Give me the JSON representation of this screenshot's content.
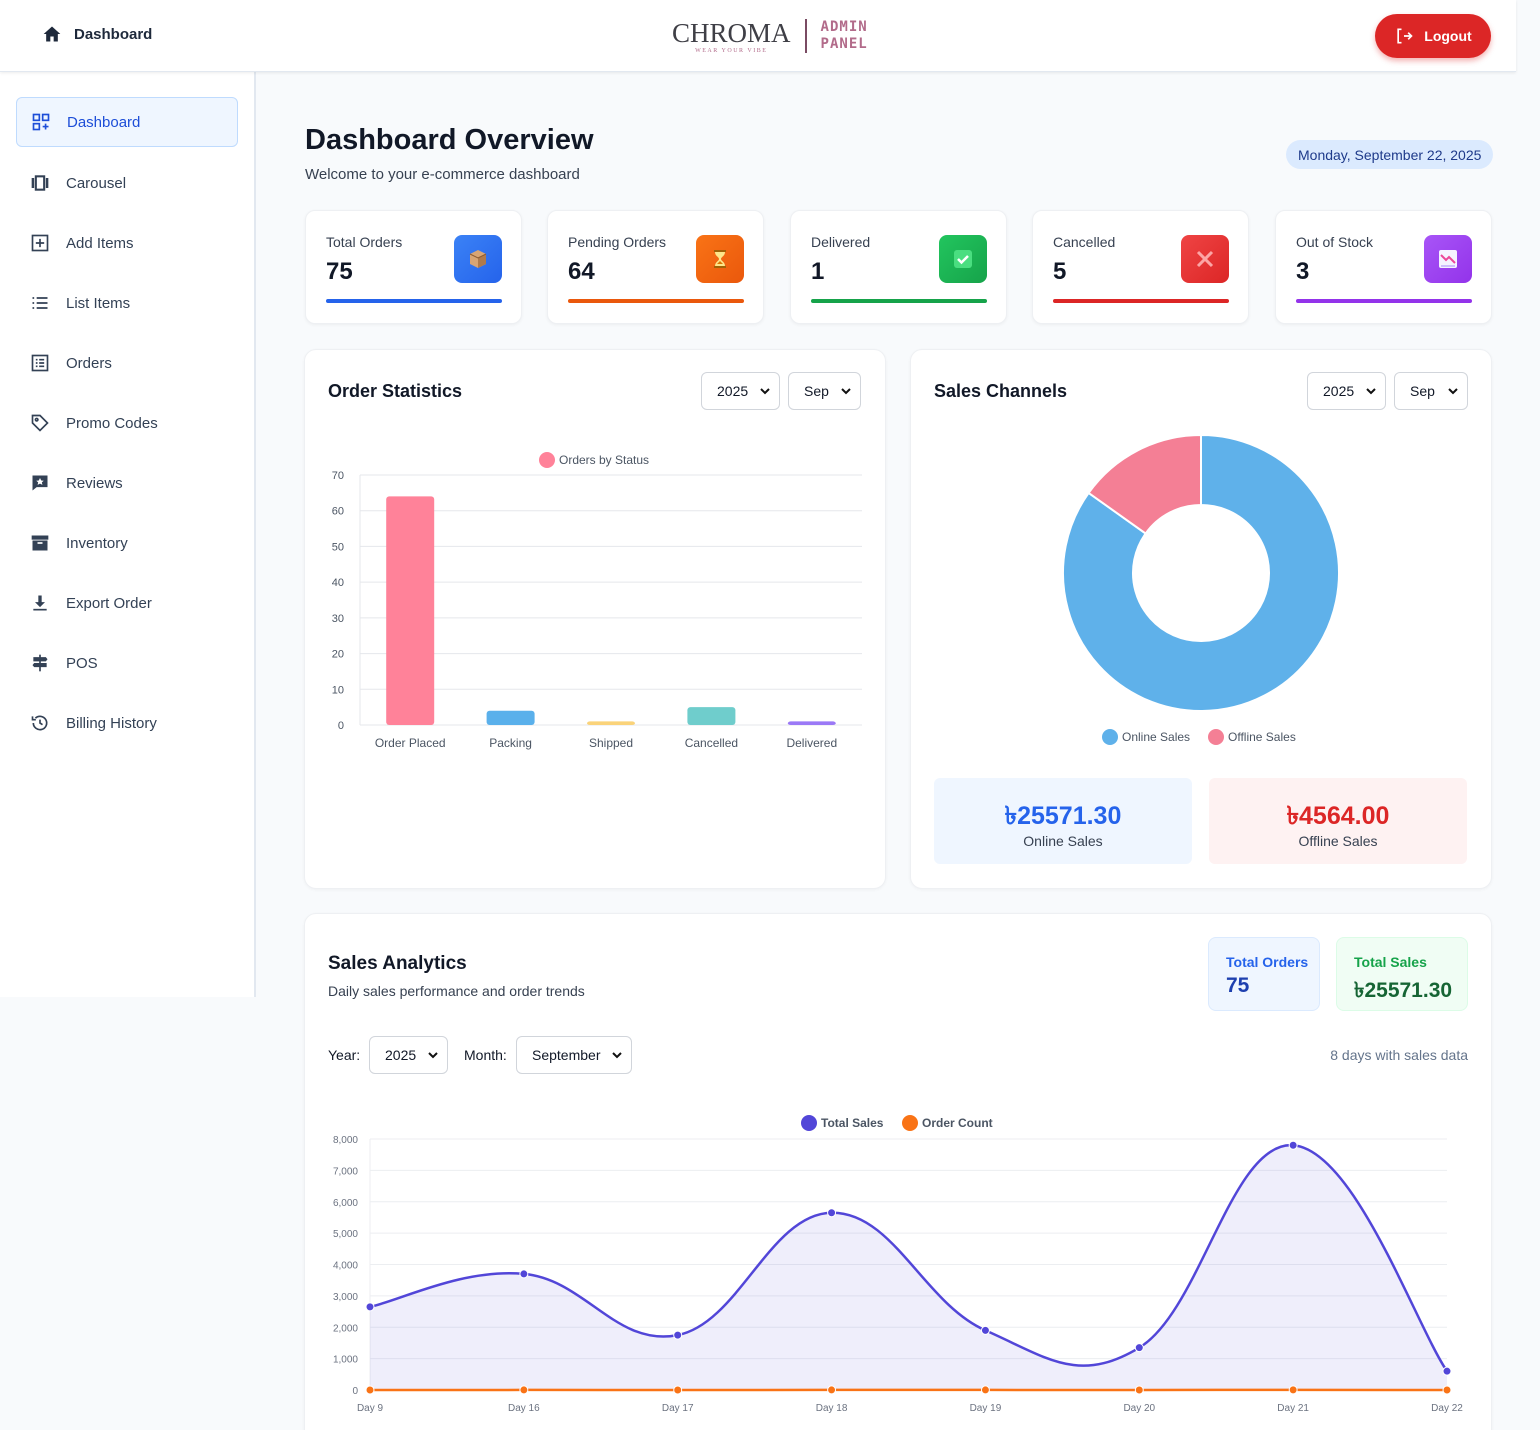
{
  "topbar": {
    "home_label": "Dashboard",
    "logo_word": "CHROMA",
    "logo_tagline": "WEAR YOUR VIBE",
    "logo_admin_1": "ADMIN",
    "logo_admin_2": "PANEL",
    "logout_label": "Logout"
  },
  "sidebar": {
    "items": [
      {
        "label": "Dashboard",
        "icon": "dashboard-grid-icon",
        "active": true
      },
      {
        "label": "Carousel",
        "icon": "carousel-icon"
      },
      {
        "label": "Add Items",
        "icon": "plus-square-icon"
      },
      {
        "label": "List Items",
        "icon": "list-icon"
      },
      {
        "label": "Orders",
        "icon": "orders-icon"
      },
      {
        "label": "Promo Codes",
        "icon": "tag-icon"
      },
      {
        "label": "Reviews",
        "icon": "review-icon"
      },
      {
        "label": "Inventory",
        "icon": "archive-icon"
      },
      {
        "label": "Export Order",
        "icon": "download-icon"
      },
      {
        "label": "POS",
        "icon": "signpost-icon"
      },
      {
        "label": "Billing History",
        "icon": "history-icon"
      }
    ]
  },
  "header": {
    "title": "Dashboard Overview",
    "subtitle": "Welcome to your e-commerce dashboard",
    "date": "Monday, September 22, 2025"
  },
  "stats": [
    {
      "label": "Total Orders",
      "value": "75",
      "icon": "package-icon",
      "color": "#2563eb"
    },
    {
      "label": "Pending Orders",
      "value": "64",
      "icon": "hourglass-icon",
      "color": "#ea580c"
    },
    {
      "label": "Delivered",
      "value": "1",
      "icon": "check-icon",
      "color": "#16a34a"
    },
    {
      "label": "Cancelled",
      "value": "5",
      "icon": "cross-icon",
      "color": "#dc2626"
    },
    {
      "label": "Out of Stock",
      "value": "3",
      "icon": "chart-down-icon",
      "color": "#9333ea"
    }
  ],
  "order_stats": {
    "title": "Order Statistics",
    "year": "2025",
    "month": "Sep"
  },
  "sales_channels": {
    "title": "Sales Channels",
    "year": "2025",
    "month": "Sep",
    "online_amount": "৳25571.30",
    "online_label": "Online Sales",
    "offline_amount": "৳4564.00",
    "offline_label": "Offline Sales"
  },
  "sales_analytics": {
    "title": "Sales Analytics",
    "subtitle": "Daily sales performance and order trends",
    "total_orders_label": "Total Orders",
    "total_orders_value": "75",
    "total_sales_label": "Total Sales",
    "total_sales_value": "৳25571.30",
    "year_label": "Year:",
    "year_value": "2025",
    "month_label": "Month:",
    "month_value": "September",
    "days_note": "8 days with sales data"
  },
  "chart_data": [
    {
      "type": "bar",
      "categories": [
        "Order Placed",
        "Packing",
        "Shipped",
        "Cancelled",
        "Delivered"
      ],
      "series": [
        {
          "name": "Orders by Status",
          "values": [
            64,
            4,
            1,
            5,
            1
          ]
        }
      ],
      "colors": [
        "#ff8299",
        "#5ab0eb",
        "#fad37a",
        "#6fcdcc",
        "#9b79f6"
      ],
      "ylim": [
        0,
        70
      ],
      "yticks": [
        0,
        10,
        20,
        30,
        40,
        50,
        60,
        70
      ],
      "legend": "top",
      "grid": true
    },
    {
      "type": "pie",
      "donut": true,
      "categories": [
        "Online Sales",
        "Offline Sales"
      ],
      "values": [
        25571.3,
        4564.0
      ],
      "colors": [
        "#5fb1ea",
        "#f47f95"
      ],
      "legend": "bottom"
    },
    {
      "type": "line",
      "x": [
        "Day 9",
        "Day 16",
        "Day 17",
        "Day 18",
        "Day 19",
        "Day 20",
        "Day 21",
        "Day 22"
      ],
      "series": [
        {
          "name": "Total Sales",
          "values": [
            2650,
            3700,
            1750,
            5650,
            1900,
            1350,
            7800,
            600
          ],
          "color": "#5246d8",
          "fill": true
        },
        {
          "name": "Order Count",
          "values": [
            1,
            2,
            1,
            2,
            2,
            1,
            4,
            1
          ],
          "color": "#f97316"
        }
      ],
      "ylim": [
        0,
        8000
      ],
      "yticks": [
        "0",
        "1,000",
        "2,000",
        "3,000",
        "4,000",
        "5,000",
        "6,000",
        "7,000",
        "8,000"
      ],
      "legend": "top",
      "grid": true
    }
  ]
}
